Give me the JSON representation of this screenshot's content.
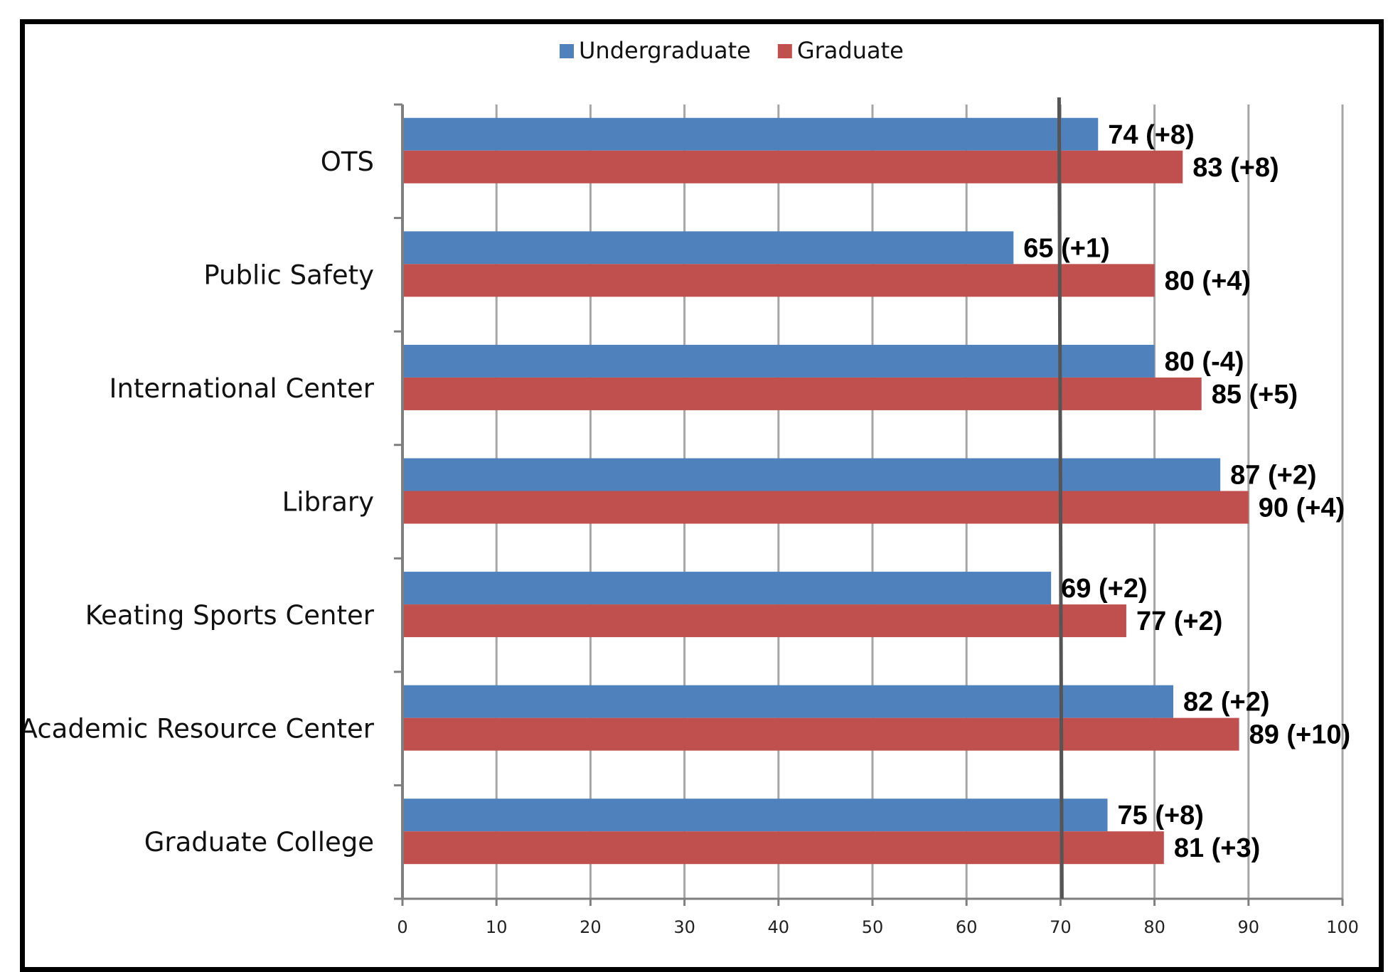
{
  "chart_data": {
    "type": "bar",
    "orientation": "horizontal",
    "categories": [
      "OTS",
      "Public Safety",
      "International Center",
      "Library",
      "Keating Sports Center",
      "Academic Resource Center",
      "Graduate College"
    ],
    "series": [
      {
        "name": "Undergraduate",
        "color": "#4f81bd",
        "values": [
          74,
          65,
          80,
          87,
          69,
          82,
          75
        ],
        "labels": [
          "74 (+8)",
          "65 (+1)",
          "80 (-4)",
          "87 (+2)",
          "69 (+2)",
          "82 (+2)",
          "75 (+8)"
        ]
      },
      {
        "name": "Graduate",
        "color": "#c0504d",
        "values": [
          83,
          80,
          85,
          90,
          77,
          89,
          81
        ],
        "labels": [
          "83 (+8)",
          "80 (+4)",
          "85 (+5)",
          "90 (+4)",
          "77 (+2)",
          "89 (+10)",
          "81 (+3)"
        ]
      }
    ],
    "xlim": [
      0,
      100
    ],
    "xticks": [
      "0",
      "10",
      "20",
      "30",
      "40",
      "50",
      "60",
      "70",
      "80",
      "90",
      "100"
    ],
    "reference_line": 70,
    "grid": true,
    "legend": "top-center",
    "title": "",
    "xlabel": "",
    "ylabel": ""
  }
}
